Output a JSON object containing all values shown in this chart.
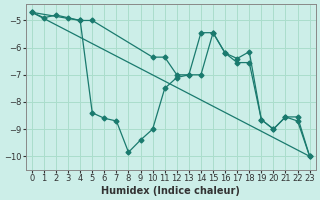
{
  "xlabel": "Humidex (Indice chaleur)",
  "bg_color": "#cceee8",
  "line_color": "#1a7a6e",
  "grid_color": "#aaddcc",
  "xlim": [
    -0.5,
    23.5
  ],
  "ylim": [
    -10.5,
    -4.4
  ],
  "xticks": [
    0,
    1,
    2,
    3,
    4,
    5,
    6,
    7,
    8,
    9,
    10,
    11,
    12,
    13,
    14,
    15,
    16,
    17,
    18,
    19,
    20,
    21,
    22,
    23
  ],
  "yticks": [
    -10,
    -9,
    -8,
    -7,
    -6,
    -5
  ],
  "series": [
    {
      "x": [
        0,
        1,
        2,
        3,
        4,
        5,
        6,
        7,
        8,
        9,
        10,
        11,
        12,
        13,
        14,
        15,
        16,
        17,
        18,
        19,
        20,
        21,
        22,
        23
      ],
      "y": [
        -4.7,
        -4.9,
        -4.8,
        -4.9,
        -5.0,
        -8.4,
        -8.6,
        -8.7,
        -9.85,
        -9.4,
        -9.0,
        -7.5,
        -7.1,
        -7.0,
        -7.0,
        -5.45,
        -6.2,
        -6.4,
        -6.15,
        -8.65,
        -9.0,
        -8.55,
        -8.7,
        -10.0
      ]
    },
    {
      "x": [
        0,
        4,
        5,
        10,
        11,
        12,
        13,
        14,
        15,
        16,
        17,
        18,
        19,
        20,
        21,
        22,
        23
      ],
      "y": [
        -4.7,
        -5.0,
        -5.0,
        -6.35,
        -6.35,
        -7.0,
        -7.0,
        -5.45,
        -5.45,
        -6.2,
        -6.55,
        -6.55,
        -8.65,
        -9.0,
        -8.55,
        -8.55,
        -10.0
      ]
    },
    {
      "x": [
        0,
        23
      ],
      "y": [
        -4.7,
        -10.0
      ]
    }
  ]
}
